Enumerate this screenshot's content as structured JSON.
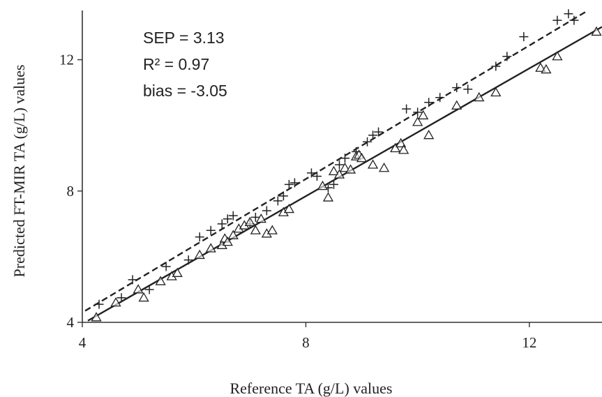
{
  "chart_data": {
    "type": "scatter",
    "title": "",
    "xlabel": "Reference TA (g/L) values",
    "ylabel": "Predicted FT-MIR TA (g/L) values",
    "xlim": [
      4,
      13.3
    ],
    "ylim": [
      4,
      13.5
    ],
    "xticks": [
      4,
      8,
      12
    ],
    "yticks": [
      4,
      8,
      12
    ],
    "xtick_labels": [
      "4",
      "8",
      "12"
    ],
    "ytick_labels": [
      "4",
      "8",
      "12"
    ],
    "grid": false,
    "legend": "none",
    "annotations": [
      "SEP = 3.13",
      "R² = 0.97",
      "bias = -3.05"
    ],
    "series": [
      {
        "marker": "plus",
        "color": "#222222",
        "fit_line": {
          "style": "dashed",
          "x": [
            4.05,
            13.0
          ],
          "y": [
            4.35,
            13.45
          ]
        },
        "points": [
          [
            4.3,
            4.55
          ],
          [
            4.7,
            4.75
          ],
          [
            4.9,
            5.3
          ],
          [
            5.2,
            5.0
          ],
          [
            5.5,
            5.7
          ],
          [
            5.9,
            5.9
          ],
          [
            6.1,
            6.6
          ],
          [
            6.3,
            6.8
          ],
          [
            6.5,
            7.0
          ],
          [
            6.6,
            7.15
          ],
          [
            6.7,
            7.25
          ],
          [
            7.0,
            7.0
          ],
          [
            7.1,
            7.2
          ],
          [
            7.3,
            7.4
          ],
          [
            7.5,
            7.7
          ],
          [
            7.6,
            7.85
          ],
          [
            7.7,
            8.2
          ],
          [
            7.8,
            8.25
          ],
          [
            8.1,
            8.55
          ],
          [
            8.2,
            8.45
          ],
          [
            8.4,
            8.1
          ],
          [
            8.5,
            8.2
          ],
          [
            8.6,
            8.8
          ],
          [
            8.7,
            9.0
          ],
          [
            8.9,
            9.2
          ],
          [
            9.1,
            9.5
          ],
          [
            9.2,
            9.7
          ],
          [
            9.3,
            9.8
          ],
          [
            9.8,
            10.5
          ],
          [
            10.0,
            10.4
          ],
          [
            10.2,
            10.7
          ],
          [
            10.4,
            10.85
          ],
          [
            10.7,
            11.15
          ],
          [
            10.9,
            11.1
          ],
          [
            11.4,
            11.8
          ],
          [
            11.6,
            12.1
          ],
          [
            11.9,
            12.7
          ],
          [
            12.5,
            13.2
          ],
          [
            12.7,
            13.4
          ],
          [
            12.8,
            13.2
          ]
        ]
      },
      {
        "marker": "triangle",
        "color": "#222222",
        "fit_line": {
          "style": "solid",
          "x": [
            4.1,
            13.3
          ],
          "y": [
            4.05,
            13.0
          ]
        },
        "points": [
          [
            4.25,
            4.15
          ],
          [
            4.6,
            4.6
          ],
          [
            5.0,
            5.0
          ],
          [
            5.1,
            4.75
          ],
          [
            5.4,
            5.25
          ],
          [
            5.6,
            5.4
          ],
          [
            5.7,
            5.5
          ],
          [
            6.1,
            6.05
          ],
          [
            6.3,
            6.25
          ],
          [
            6.5,
            6.35
          ],
          [
            6.55,
            6.55
          ],
          [
            6.6,
            6.45
          ],
          [
            6.7,
            6.65
          ],
          [
            6.8,
            6.85
          ],
          [
            6.9,
            6.95
          ],
          [
            7.0,
            7.05
          ],
          [
            7.1,
            6.8
          ],
          [
            7.2,
            7.15
          ],
          [
            7.3,
            6.7
          ],
          [
            7.4,
            6.8
          ],
          [
            7.6,
            7.35
          ],
          [
            7.7,
            7.45
          ],
          [
            8.3,
            8.15
          ],
          [
            8.4,
            7.8
          ],
          [
            8.5,
            8.6
          ],
          [
            8.6,
            8.5
          ],
          [
            8.7,
            8.7
          ],
          [
            8.8,
            8.65
          ],
          [
            8.9,
            9.05
          ],
          [
            8.95,
            9.1
          ],
          [
            9.0,
            9.0
          ],
          [
            9.2,
            8.8
          ],
          [
            9.4,
            8.7
          ],
          [
            9.6,
            9.3
          ],
          [
            9.7,
            9.45
          ],
          [
            9.75,
            9.25
          ],
          [
            10.0,
            10.1
          ],
          [
            10.1,
            10.3
          ],
          [
            10.2,
            9.7
          ],
          [
            10.7,
            10.6
          ],
          [
            11.1,
            10.85
          ],
          [
            11.4,
            11.0
          ],
          [
            12.2,
            11.75
          ],
          [
            12.3,
            11.7
          ],
          [
            12.5,
            12.1
          ],
          [
            13.2,
            12.85
          ]
        ]
      }
    ]
  }
}
